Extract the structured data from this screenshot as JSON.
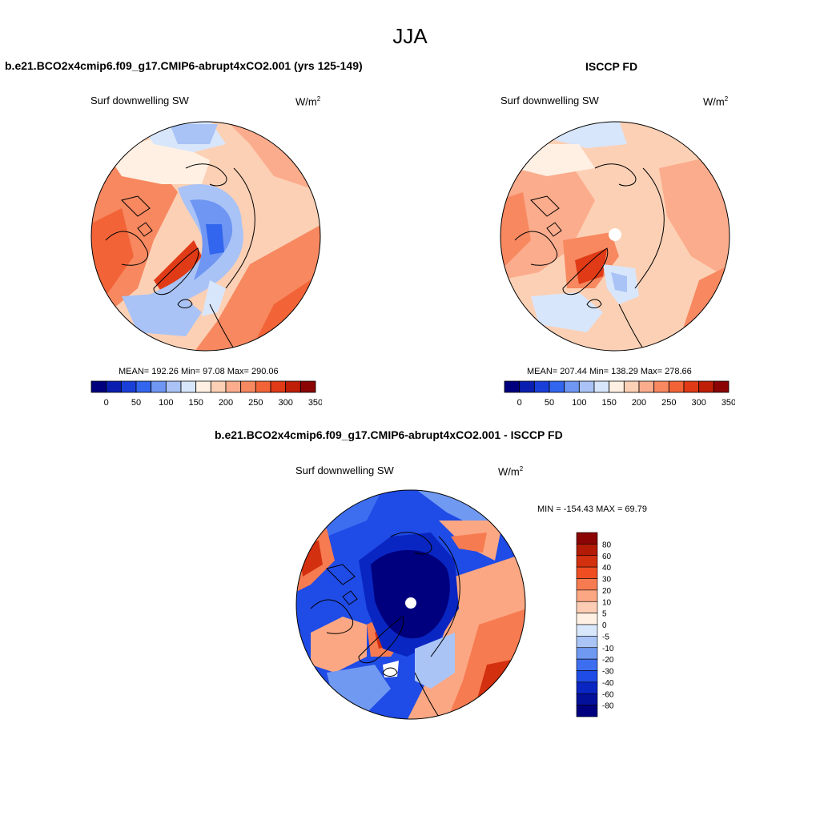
{
  "figure_title": "JJA",
  "panels": {
    "model": {
      "title": "b.e21.BCO2x4cmip6.f09_g17.CMIP6-abrupt4xCO2.001 (yrs 125-149)",
      "variable": "Surf downwelling SW",
      "units": "W/m",
      "units_exp": "2",
      "stats": "MEAN= 192.26  Min=  97.08  Max= 290.06"
    },
    "obs": {
      "title": "ISCCP FD",
      "variable": "Surf downwelling SW",
      "units": "W/m",
      "units_exp": "2",
      "stats": "MEAN= 207.44  Min= 138.29  Max= 278.66"
    },
    "diff": {
      "title": "b.e21.BCO2x4cmip6.f09_g17.CMIP6-abrupt4xCO2.001 - ISCCP FD",
      "variable": "Surf downwelling SW",
      "units": "W/m",
      "units_exp": "2",
      "stats": "MIN = -154.43 MAX =  69.79"
    }
  },
  "colorbar_abs": {
    "colors": [
      "#00007f",
      "#0a1fb0",
      "#1a3fd8",
      "#3366ee",
      "#6f96f2",
      "#a9c3f6",
      "#d8e6fb",
      "#fff0e3",
      "#fcd0b5",
      "#fbac8c",
      "#f78860",
      "#f26438",
      "#e03a16",
      "#bf1e07",
      "#8a0504"
    ],
    "tick_labels": [
      "0",
      "50",
      "100",
      "150",
      "200",
      "250",
      "300",
      "350"
    ]
  },
  "colorbar_diff": {
    "colors": [
      "#8a0504",
      "#b31b06",
      "#d3300f",
      "#ef4e23",
      "#f77b51",
      "#fba783",
      "#fccdb4",
      "#fff0e3",
      "#d9e7fb",
      "#aac4f6",
      "#7099f2",
      "#3e6ef0",
      "#1f4be6",
      "#0a26c2",
      "#03109a",
      "#00007f"
    ],
    "tick_labels": [
      "80",
      "60",
      "40",
      "30",
      "20",
      "10",
      "5",
      "0",
      "-5",
      "-10",
      "-20",
      "-30",
      "-40",
      "-60",
      "-80"
    ]
  }
}
